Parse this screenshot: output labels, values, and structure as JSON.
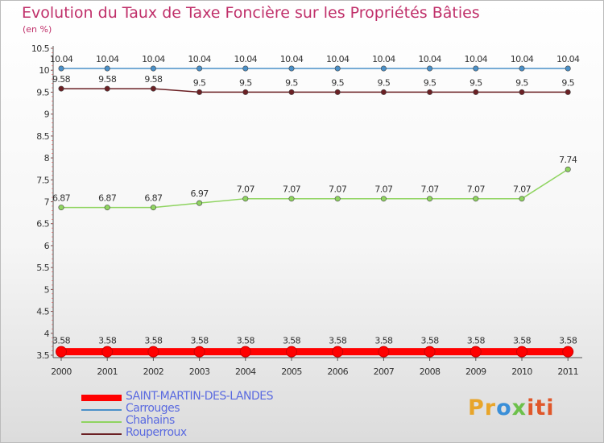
{
  "chart_data": {
    "type": "line",
    "title": "Evolution du Taux de Taxe Foncière sur les Propriétés Bâties",
    "subtitle": "(en %)",
    "xlabel": "",
    "ylabel": "",
    "x": [
      "2000",
      "2001",
      "2002",
      "2003",
      "2004",
      "2005",
      "2006",
      "2007",
      "2008",
      "2009",
      "2010",
      "2011"
    ],
    "ylim": [
      3.5,
      10.5
    ],
    "yticks": [
      3.5,
      4,
      4.5,
      5,
      5.5,
      6,
      6.5,
      7,
      7.5,
      8,
      8.5,
      9,
      9.5,
      10,
      10.5
    ],
    "grid": false,
    "legend": "bottom-left",
    "series": [
      {
        "name": "SAINT-MARTIN-DES-LANDES",
        "color": "#ff0000",
        "values": [
          3.58,
          3.58,
          3.58,
          3.58,
          3.58,
          3.58,
          3.58,
          3.58,
          3.58,
          3.58,
          3.58,
          3.58
        ],
        "labels": [
          "3.58",
          "3.58",
          "3.58",
          "3.58",
          "3.58",
          "3.58",
          "3.58",
          "3.58",
          "3.58",
          "3.58",
          "3.58",
          "3.58"
        ]
      },
      {
        "name": "Carrouges",
        "color": "#4a90c8",
        "values": [
          10.04,
          10.04,
          10.04,
          10.04,
          10.04,
          10.04,
          10.04,
          10.04,
          10.04,
          10.04,
          10.04,
          10.04
        ],
        "labels": [
          "10.04",
          "10.04",
          "10.04",
          "10.04",
          "10.04",
          "10.04",
          "10.04",
          "10.04",
          "10.04",
          "10.04",
          "10.04",
          "10.04"
        ]
      },
      {
        "name": "Chahains",
        "color": "#8fd460",
        "values": [
          6.87,
          6.87,
          6.87,
          6.97,
          7.07,
          7.07,
          7.07,
          7.07,
          7.07,
          7.07,
          7.07,
          7.74
        ],
        "labels": [
          "6.87",
          "6.87",
          "6.87",
          "6.97",
          "7.07",
          "7.07",
          "7.07",
          "7.07",
          "7.07",
          "7.07",
          "7.07",
          "7.74"
        ]
      },
      {
        "name": "Rouperroux",
        "color": "#6b2024",
        "values": [
          9.58,
          9.58,
          9.58,
          9.5,
          9.5,
          9.5,
          9.5,
          9.5,
          9.5,
          9.5,
          9.5,
          9.5
        ],
        "labels": [
          "9.58",
          "9.58",
          "9.58",
          "9.5",
          "9.5",
          "9.5",
          "9.5",
          "9.5",
          "9.5",
          "9.5",
          "9.5",
          "9.5"
        ]
      }
    ]
  },
  "logo": {
    "text_1": "Pr",
    "text_2": "o",
    "text_3": "x",
    "text_4": "iti"
  }
}
